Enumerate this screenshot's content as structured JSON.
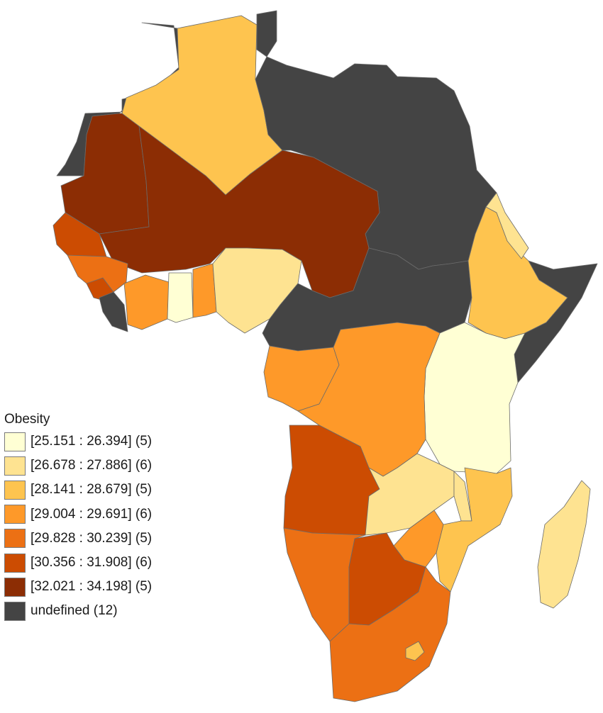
{
  "legend": {
    "title": "Obesity",
    "classes": [
      {
        "label": "[25.151 : 26.394] (5)",
        "color": "#ffffd4"
      },
      {
        "label": "[26.678 : 27.886] (6)",
        "color": "#fee391"
      },
      {
        "label": "[28.141 : 28.679] (5)",
        "color": "#fec44f"
      },
      {
        "label": "[29.004 : 29.691] (6)",
        "color": "#fe9929"
      },
      {
        "label": "[29.828 : 30.239] (5)",
        "color": "#ec7014"
      },
      {
        "label": "[30.356 : 31.908] (6)",
        "color": "#cc4c02"
      },
      {
        "label": "[32.021 : 34.198] (5)",
        "color": "#8c2d04"
      },
      {
        "label": "undefined (12)",
        "color": "#444444"
      }
    ]
  }
}
